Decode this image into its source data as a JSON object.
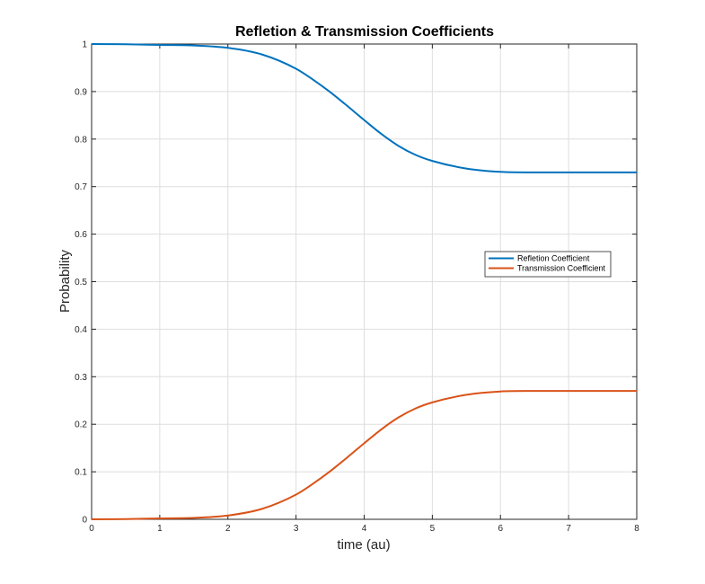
{
  "chart_data": {
    "type": "line",
    "title": "Refletion & Transmission Coefficients",
    "xlabel": "time (au)",
    "ylabel": "Probability",
    "xlim": [
      0,
      8
    ],
    "ylim": [
      0,
      1
    ],
    "xticks": [
      0,
      1,
      2,
      3,
      4,
      5,
      6,
      7,
      8
    ],
    "xtick_labels": [
      "0",
      "1",
      "2",
      "3",
      "4",
      "5",
      "6",
      "7",
      "8"
    ],
    "yticks": [
      0,
      0.1,
      0.2,
      0.3,
      0.4,
      0.5,
      0.6,
      0.7,
      0.8,
      0.9,
      1
    ],
    "ytick_labels": [
      "0",
      "0.1",
      "0.2",
      "0.3",
      "0.4",
      "0.5",
      "0.6",
      "0.7",
      "0.8",
      "0.9",
      "1"
    ],
    "grid": true,
    "legend_position": "right",
    "x": [
      0,
      0.5,
      1,
      1.5,
      2,
      2.5,
      3,
      3.25,
      3.5,
      3.75,
      4,
      4.25,
      4.5,
      4.75,
      5,
      5.5,
      6,
      6.5,
      7,
      7.5,
      8
    ],
    "series": [
      {
        "name": "Refletion Coefficient",
        "color": "#0072BD",
        "values": [
          1.0,
          0.9995,
          0.998,
          0.997,
          0.992,
          0.978,
          0.948,
          0.925,
          0.899,
          0.87,
          0.84,
          0.811,
          0.786,
          0.767,
          0.754,
          0.738,
          0.731,
          0.73,
          0.73,
          0.73,
          0.73
        ]
      },
      {
        "name": "Transmission Coefficient",
        "color": "#D95319",
        "values": [
          0.0,
          0.0005,
          0.002,
          0.003,
          0.008,
          0.022,
          0.052,
          0.075,
          0.101,
          0.13,
          0.16,
          0.189,
          0.214,
          0.233,
          0.246,
          0.262,
          0.269,
          0.27,
          0.27,
          0.27,
          0.27
        ]
      }
    ]
  }
}
